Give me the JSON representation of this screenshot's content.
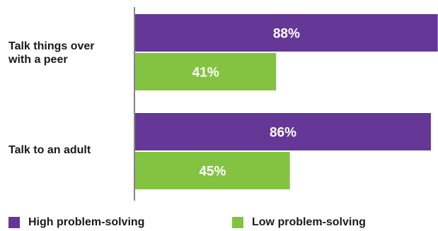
{
  "colors": {
    "high": "#653796",
    "low": "#83c341",
    "axis": "#333333"
  },
  "chart_data": {
    "type": "bar",
    "orientation": "horizontal",
    "categories": [
      "Talk things over\nwith a peer",
      "Talk to an adult"
    ],
    "series": [
      {
        "name": "High problem-solving",
        "values": [
          88,
          86
        ],
        "labels": [
          "88%",
          "86%"
        ]
      },
      {
        "name": "Low problem-solving",
        "values": [
          41,
          45
        ],
        "labels": [
          "41%",
          "45%"
        ]
      }
    ],
    "xlim": [
      0,
      100
    ],
    "grid": false,
    "legend": "bottom"
  }
}
